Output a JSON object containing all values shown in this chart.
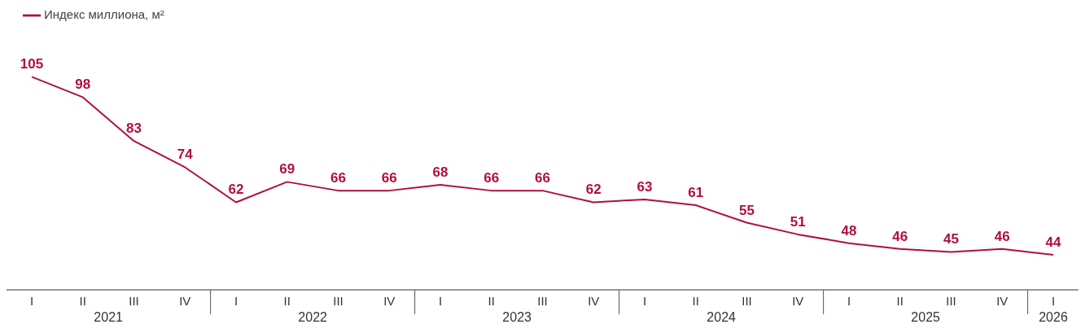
{
  "chart_data": {
    "type": "line",
    "categories": [
      "I",
      "II",
      "III",
      "IV",
      "I",
      "II",
      "III",
      "IV",
      "I",
      "II",
      "III",
      "IV",
      "I",
      "II",
      "III",
      "IV",
      "I",
      "II",
      "III",
      "IV",
      "I"
    ],
    "series": [
      {
        "name": "Индекс миллиона, м²",
        "color": "#b0103a",
        "values": [
          105,
          98,
          83,
          74,
          62,
          69,
          66,
          66,
          68,
          66,
          66,
          62,
          63,
          61,
          55,
          51,
          48,
          46,
          45,
          46,
          44
        ]
      }
    ],
    "annotations": [
      "2021",
      "2022",
      "2023",
      "2024",
      "2025",
      "2026"
    ],
    "data_labels": true,
    "legend": "top left",
    "marker": "none"
  }
}
